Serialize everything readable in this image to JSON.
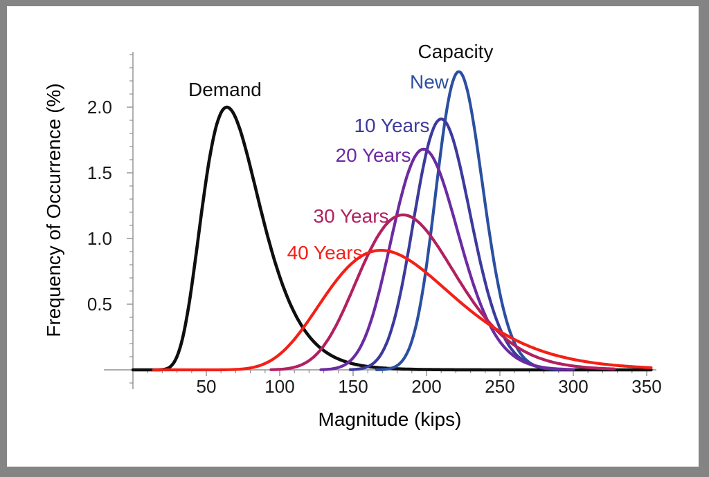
{
  "figure": {
    "frame_color": "#848484",
    "background_color": "#ffffff"
  },
  "colors": {
    "axis_line": "#8f8f8f",
    "tick_mark": "#8f8f8f",
    "tick_text": "#1a1a1a",
    "demand_black": "#0f0f0f",
    "capacity_new_blue": "#2b50a1",
    "capacity_10y_indigo": "#3d3a9d",
    "capacity_20y_purple": "#6c2ba1",
    "capacity_30y_crimson": "#b12160",
    "capacity_40y_red": "#f32017"
  },
  "chart_data": {
    "type": "line",
    "title": "",
    "xlabel": "Magnitude (kips)",
    "ylabel": "Frequency of Occurrence (%)",
    "xlim": [
      0,
      358
    ],
    "ylim": [
      0,
      2.42
    ],
    "x_ticks": [
      50,
      100,
      150,
      200,
      250,
      300,
      350
    ],
    "x_minor_step": 10,
    "y_ticks": [
      "0.5",
      "1.0",
      "1.5",
      "2.0"
    ],
    "y_tick_values": [
      0.5,
      1.0,
      1.5,
      2.0
    ],
    "y_minor_step": 0.1,
    "grid": false,
    "legend_position": "inline-curve-labels",
    "group_labels": [
      {
        "text": "Demand",
        "color": "#0f0f0f",
        "x": 62.7,
        "y": 2.13
      },
      {
        "text": "Capacity",
        "color": "#0f0f0f",
        "x": 219.8,
        "y": 2.42
      }
    ],
    "series": [
      {
        "name": "Demand",
        "color": "#0f0f0f",
        "shape": "lognormal",
        "peak_x_kips": 64,
        "peak_y_pct": 2.0,
        "sigma_ln": 0.31,
        "x_range": [
          0,
          353
        ],
        "label": null
      },
      {
        "name": "New",
        "color": "#2b50a1",
        "shape": "lognormal",
        "peak_x_kips": 222,
        "peak_y_pct": 2.27,
        "sigma_ln": 0.072,
        "x_range": [
          166,
          290
        ],
        "label": {
          "x": 201.9,
          "y": 2.19
        }
      },
      {
        "name": "10 Years",
        "color": "#3d3a9d",
        "shape": "lognormal",
        "peak_x_kips": 210,
        "peak_y_pct": 1.91,
        "sigma_ln": 0.092,
        "x_range": [
          148,
          293
        ],
        "label": {
          "x": 176.4,
          "y": 1.86
        }
      },
      {
        "name": "20 Years",
        "color": "#6c2ba1",
        "shape": "lognormal",
        "peak_x_kips": 198,
        "peak_y_pct": 1.68,
        "sigma_ln": 0.115,
        "x_range": [
          128,
          300
        ],
        "label": {
          "x": 163.7,
          "y": 1.63
        }
      },
      {
        "name": "30 Years",
        "color": "#b12160",
        "shape": "lognormal",
        "peak_x_kips": 184,
        "peak_y_pct": 1.18,
        "sigma_ln": 0.18,
        "x_range": [
          94,
          328
        ],
        "label": {
          "x": 148.6,
          "y": 1.17
        }
      },
      {
        "name": "40 Years",
        "color": "#f32017",
        "shape": "lognormal",
        "peak_x_kips": 169,
        "peak_y_pct": 0.91,
        "sigma_ln": 0.26,
        "x_range": [
          14,
          353
        ],
        "label": {
          "x": 130.7,
          "y": 0.89
        }
      }
    ]
  }
}
